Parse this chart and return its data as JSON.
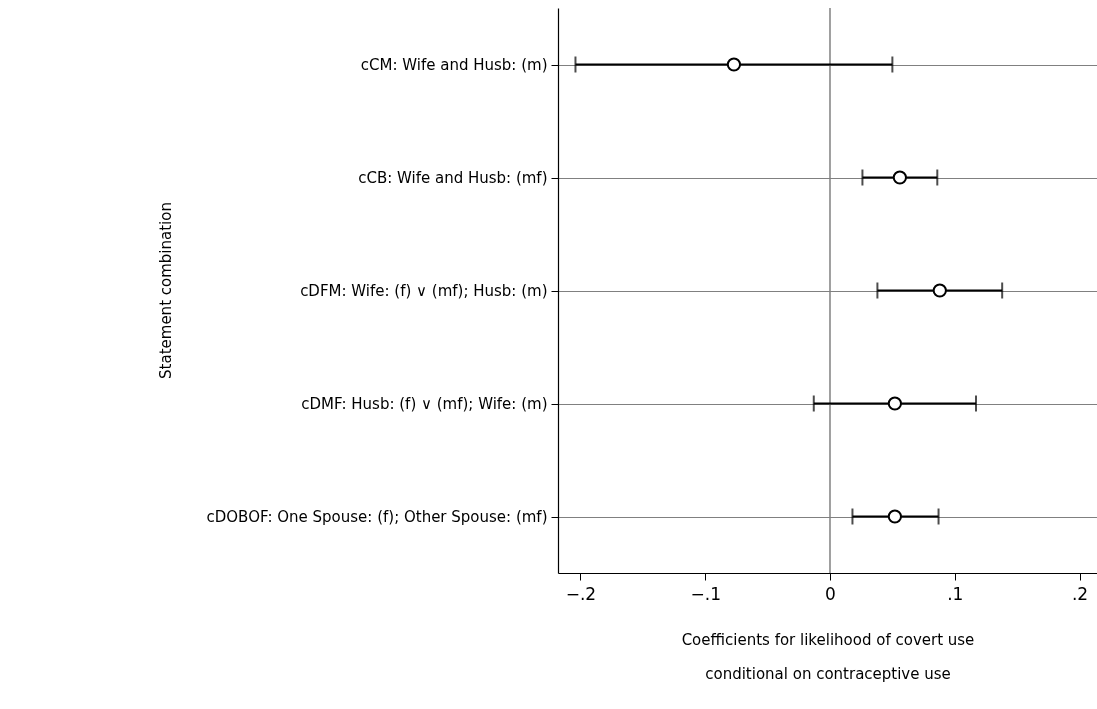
{
  "chart_data": {
    "type": "scatter",
    "orientation": "horizontal",
    "xlabel": "Coefficients for likelihood of covert use\nconditional on contraceptive use",
    "ylabel": "Statement combination",
    "categories": [
      "cCM: Wife and Husb: (m)",
      "cCB: Wife and Husb: (mf)",
      "cDFM: Wife: (f) ∨ (mf); Husb: (m)",
      "cDMF: Husb: (f) ∨ (mf); Wife: (m)",
      "cDOBOF:  One Spouse: (f); Other Spouse: (mf)"
    ],
    "values": [
      -0.077,
      0.056,
      0.088,
      0.052,
      0.052
    ],
    "errors": [
      [
        -0.204,
        0.05
      ],
      [
        0.026,
        0.086
      ],
      [
        0.038,
        0.138
      ],
      [
        -0.013,
        0.117
      ],
      [
        0.018,
        0.087
      ]
    ],
    "color": "#000000",
    "marker": "circle",
    "grid": "y",
    "xlim": [
      -0.218,
      0.214
    ],
    "xticks": [
      {
        "value": -0.2,
        "label": "−.2"
      },
      {
        "value": -0.1,
        "label": "−.1"
      },
      0,
      {
        "value": 0.1,
        "label": ".1"
      },
      {
        "value": 0.2,
        "label": ".2"
      }
    ],
    "ref_lines": [
      {
        "axis": "x",
        "value": 0,
        "color": "#808080"
      }
    ]
  }
}
